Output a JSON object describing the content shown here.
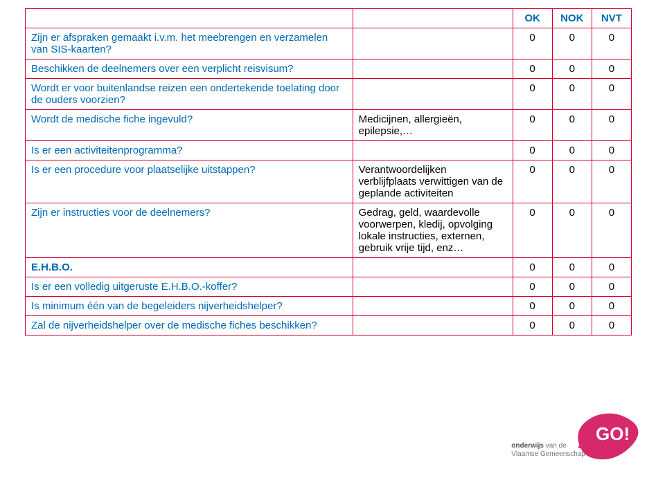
{
  "headers": {
    "ok": "OK",
    "nok": "NOK",
    "nvt": "NVT"
  },
  "rows": [
    {
      "q": "Zijn er afspraken gemaakt i.v.m. het meebrengen en verzamelen van SIS-kaarten?",
      "d": "",
      "ok": "0",
      "nok": "0",
      "nvt": "0"
    },
    {
      "q": "Beschikken de deelnemers over een verplicht reisvisum?",
      "d": "",
      "ok": "0",
      "nok": "0",
      "nvt": "0"
    },
    {
      "q": "Wordt er voor buitenlandse reizen een ondertekende toelating door de ouders voorzien?",
      "d": "",
      "ok": "0",
      "nok": "0",
      "nvt": "0"
    },
    {
      "q": "Wordt de medische fiche ingevuld?",
      "d": "Medicijnen, allergieën, epilepsie,…",
      "ok": "0",
      "nok": "0",
      "nvt": "0"
    },
    {
      "q": "Is er een activiteitenprogramma?",
      "d": "",
      "ok": "0",
      "nok": "0",
      "nvt": "0"
    },
    {
      "q": "Is er een procedure voor plaatselijke uitstappen?",
      "d": "Verantwoordelijken verblijfplaats verwittigen van de geplande activiteiten",
      "ok": "0",
      "nok": "0",
      "nvt": "0"
    },
    {
      "q": "Zijn er instructies voor de deelnemers?",
      "d": "Gedrag, geld, waardevolle voorwerpen, kledij, opvolging lokale instructies, externen, gebruik vrije tijd, enz…",
      "ok": "0",
      "nok": "0",
      "nvt": "0"
    },
    {
      "q": "E.H.B.O.",
      "d": "",
      "ok": "0",
      "nok": "0",
      "nvt": "0",
      "bold": true
    },
    {
      "q": "Is er een volledig uitgeruste E.H.B.O.-koffer?",
      "d": "",
      "ok": "0",
      "nok": "0",
      "nvt": "0"
    },
    {
      "q": "Is minimum één van de begeleiders nijverheidshelper?",
      "d": "",
      "ok": "0",
      "nok": "0",
      "nvt": "0"
    },
    {
      "q": "Zal de nijverheidshelper over de medische fiches beschikken?",
      "d": "",
      "ok": "0",
      "nok": "0",
      "nvt": "0"
    }
  ],
  "logo": {
    "text_go": "GO!",
    "sub1": "onderwijs",
    "sub2": "van de",
    "sub3": "Vlaamse Gemeenschap",
    "pink": "#d6286b",
    "gray": "#6f6f6f"
  }
}
